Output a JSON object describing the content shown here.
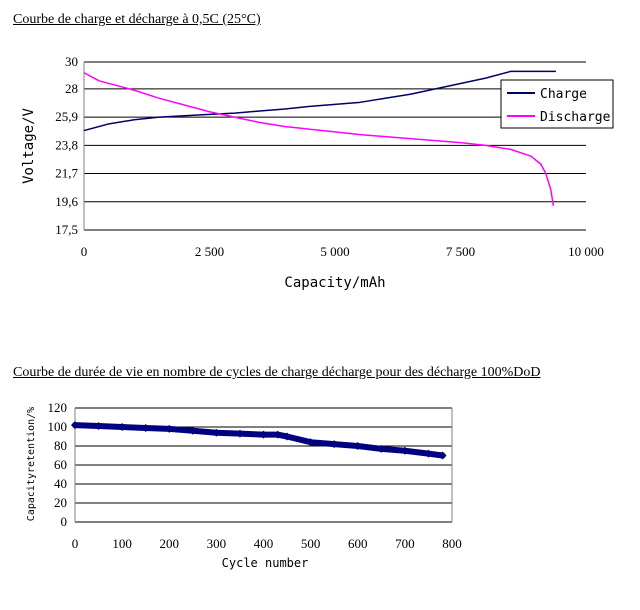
{
  "chart_data": [
    {
      "type": "line",
      "title": "Courbe de charge et décharge à 0,5C (25°C)",
      "xlabel": "Capacity/mAh",
      "ylabel": "Voltage/V",
      "xlim": [
        0,
        10000
      ],
      "ylim": [
        17.5,
        30
      ],
      "xticks": [
        "0",
        "2 500",
        "5 000",
        "7 500",
        "10 000"
      ],
      "yticks": [
        "30",
        "28",
        "25,9",
        "23,8",
        "21,7",
        "19,6",
        "17,5"
      ],
      "ytick_values": [
        30,
        28,
        25.9,
        23.8,
        21.7,
        19.6,
        17.5
      ],
      "xtick_values": [
        0,
        2500,
        5000,
        7500,
        10000
      ],
      "grid": true,
      "legend_position": "top-right",
      "series": [
        {
          "name": "Charge",
          "color": "#000066",
          "x": [
            0,
            500,
            1000,
            1500,
            2000,
            2500,
            3000,
            3500,
            4000,
            4500,
            5000,
            5500,
            6000,
            6500,
            7000,
            7500,
            8000,
            8500,
            9000,
            9400
          ],
          "y": [
            24.9,
            25.4,
            25.7,
            25.9,
            26.0,
            26.1,
            26.2,
            26.35,
            26.5,
            26.7,
            26.85,
            27.0,
            27.3,
            27.6,
            28.0,
            28.4,
            28.8,
            29.3,
            29.3,
            29.3
          ]
        },
        {
          "name": "Discharge",
          "color": "#ff00ff",
          "x": [
            0,
            300,
            700,
            1000,
            1500,
            2000,
            2500,
            3000,
            3500,
            4000,
            4500,
            5000,
            5500,
            6000,
            6500,
            7000,
            7500,
            8000,
            8500,
            8900,
            9100,
            9200,
            9300,
            9350
          ],
          "y": [
            29.2,
            28.6,
            28.2,
            27.9,
            27.3,
            26.8,
            26.3,
            25.9,
            25.5,
            25.2,
            25.0,
            24.8,
            24.6,
            24.45,
            24.3,
            24.15,
            24.0,
            23.8,
            23.5,
            23.0,
            22.4,
            21.7,
            20.5,
            19.3
          ]
        }
      ]
    },
    {
      "type": "line",
      "title": "Courbe de durée de vie en nombre de cycles de charge décharge pour des décharge 100%DoD",
      "xlabel": "Cycle number",
      "ylabel": "Capacityretention/%",
      "xlim": [
        0,
        800
      ],
      "ylim": [
        0,
        120
      ],
      "xticks": [
        "0",
        "100",
        "200",
        "300",
        "400",
        "500",
        "600",
        "700",
        "800"
      ],
      "yticks": [
        "120",
        "100",
        "80",
        "60",
        "40",
        "20",
        "0"
      ],
      "grid": true,
      "series": [
        {
          "name": "",
          "color": "#000080",
          "x": [
            0,
            50,
            100,
            150,
            200,
            250,
            300,
            350,
            400,
            430,
            450,
            500,
            550,
            600,
            650,
            700,
            750,
            780
          ],
          "y": [
            102,
            101,
            100,
            99,
            98,
            96,
            94,
            93,
            92,
            92,
            90,
            84,
            82,
            80,
            77,
            75,
            72,
            70
          ]
        }
      ]
    }
  ]
}
